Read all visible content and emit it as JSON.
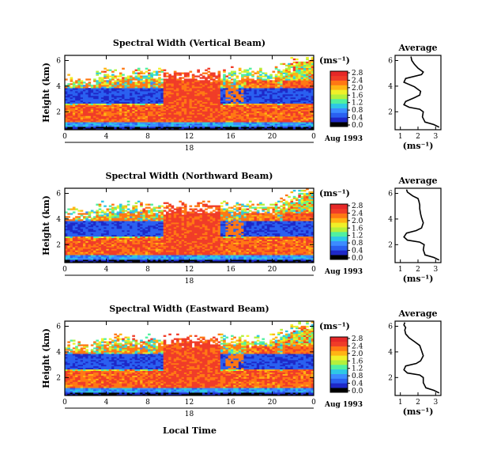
{
  "figure": {
    "xlabel": "Local Time",
    "date_label": "Aug 1993",
    "day_label": "18",
    "unit_label": "(ms⁻¹)"
  },
  "chart_data": [
    {
      "type": "heatmap",
      "title": "Spectral Width (Vertical Beam)",
      "xlabel": "Local Time",
      "ylabel": "Height (km)",
      "xticks": [
        "0",
        "4",
        "8",
        "12",
        "16",
        "20",
        "0"
      ],
      "yticks": [
        "2",
        "4",
        "6"
      ],
      "xlim": [
        0,
        24
      ],
      "ylim": [
        0.6,
        6.4
      ],
      "colorbar": {
        "label": "(ms⁻¹)",
        "ticks": [
          "0.0",
          "0.4",
          "0.8",
          "1.2",
          "1.6",
          "2.0",
          "2.4",
          "2.8"
        ],
        "range": [
          0,
          3.0
        ]
      }
    },
    {
      "type": "line",
      "title": "Average",
      "xlabel": "(ms⁻¹)",
      "xticks": [
        "1",
        "2",
        "3"
      ],
      "yticks": [
        "2",
        "4",
        "6"
      ],
      "xlim": [
        0.7,
        3.3
      ],
      "ylim": [
        0.6,
        6.4
      ],
      "series": [
        {
          "x": [
            3.2,
            2.9,
            2.4,
            2.25,
            2.3,
            2.1,
            1.5,
            1.2,
            1.3,
            1.8,
            2.1,
            2.15,
            1.8,
            1.2,
            1.3,
            2.2,
            2.3,
            2.0,
            1.8,
            1.65,
            1.6
          ],
          "y": [
            0.8,
            1.0,
            1.2,
            1.6,
            2.0,
            2.2,
            2.35,
            2.55,
            2.8,
            3.1,
            3.3,
            3.6,
            3.95,
            4.3,
            4.6,
            4.9,
            5.1,
            5.4,
            5.7,
            6.0,
            6.3
          ]
        }
      ]
    },
    {
      "type": "heatmap",
      "title": "Spectral Width (Northward Beam)",
      "xlabel": "Local Time",
      "ylabel": "Height (km)",
      "xticks": [
        "0",
        "4",
        "8",
        "12",
        "16",
        "20",
        "0"
      ],
      "yticks": [
        "2",
        "4",
        "6"
      ],
      "xlim": [
        0,
        24
      ],
      "ylim": [
        0.6,
        6.4
      ],
      "colorbar": {
        "label": "(ms⁻¹)",
        "ticks": [
          "0.0",
          "0.4",
          "0.8",
          "1.2",
          "1.6",
          "2.0",
          "2.4",
          "2.8"
        ],
        "range": [
          0,
          3.0
        ]
      }
    },
    {
      "type": "line",
      "title": "Average",
      "xlabel": "(ms⁻¹)",
      "xticks": [
        "1",
        "2",
        "3"
      ],
      "yticks": [
        "2",
        "4",
        "6"
      ],
      "xlim": [
        0.7,
        3.3
      ],
      "ylim": [
        0.6,
        6.4
      ],
      "series": [
        {
          "x": [
            3.2,
            2.9,
            2.4,
            2.3,
            2.35,
            2.1,
            1.4,
            1.2,
            1.35,
            1.9,
            2.2,
            2.3,
            2.2,
            2.15,
            2.1,
            2.1,
            2.05,
            2.0,
            1.7,
            1.4,
            1.35
          ],
          "y": [
            0.8,
            1.0,
            1.2,
            1.6,
            2.0,
            2.2,
            2.35,
            2.6,
            2.9,
            3.1,
            3.3,
            3.7,
            4.1,
            4.4,
            4.8,
            5.1,
            5.4,
            5.6,
            5.8,
            6.1,
            6.3
          ]
        }
      ]
    },
    {
      "type": "heatmap",
      "title": "Spectral Width (Eastward Beam)",
      "xlabel": "Local Time",
      "ylabel": "Height (km)",
      "xticks": [
        "0",
        "4",
        "8",
        "12",
        "16",
        "20",
        "0"
      ],
      "yticks": [
        "2",
        "4",
        "6"
      ],
      "xlim": [
        0,
        24
      ],
      "ylim": [
        0.6,
        6.4
      ],
      "colorbar": {
        "label": "(ms⁻¹)",
        "ticks": [
          "0.0",
          "0.4",
          "0.8",
          "1.2",
          "1.6",
          "2.0",
          "2.4",
          "2.8"
        ],
        "range": [
          0,
          3.0
        ]
      }
    },
    {
      "type": "line",
      "title": "Average",
      "xlabel": "(ms⁻¹)",
      "xticks": [
        "1",
        "2",
        "3"
      ],
      "yticks": [
        "2",
        "4",
        "6"
      ],
      "xlim": [
        0.7,
        3.3
      ],
      "ylim": [
        0.6,
        6.4
      ],
      "series": [
        {
          "x": [
            3.2,
            2.9,
            2.45,
            2.3,
            2.3,
            2.1,
            1.4,
            1.2,
            1.3,
            1.9,
            2.15,
            2.3,
            2.2,
            2.1,
            1.8,
            1.5,
            1.3,
            1.25,
            1.3,
            1.2,
            1.25
          ],
          "y": [
            0.8,
            1.0,
            1.2,
            1.6,
            2.0,
            2.2,
            2.35,
            2.6,
            2.9,
            3.1,
            3.3,
            3.7,
            4.1,
            4.5,
            4.8,
            5.1,
            5.4,
            5.7,
            5.9,
            6.1,
            6.3
          ]
        }
      ]
    }
  ],
  "colors": {
    "scale": [
      "#000000",
      "#1e28c8",
      "#2a60f0",
      "#3c8cff",
      "#2ec8e6",
      "#50f0a0",
      "#b4f03c",
      "#f0f028",
      "#ffb414",
      "#ff7814",
      "#f03c28",
      "#e62828"
    ],
    "missing": "#ffffff"
  }
}
